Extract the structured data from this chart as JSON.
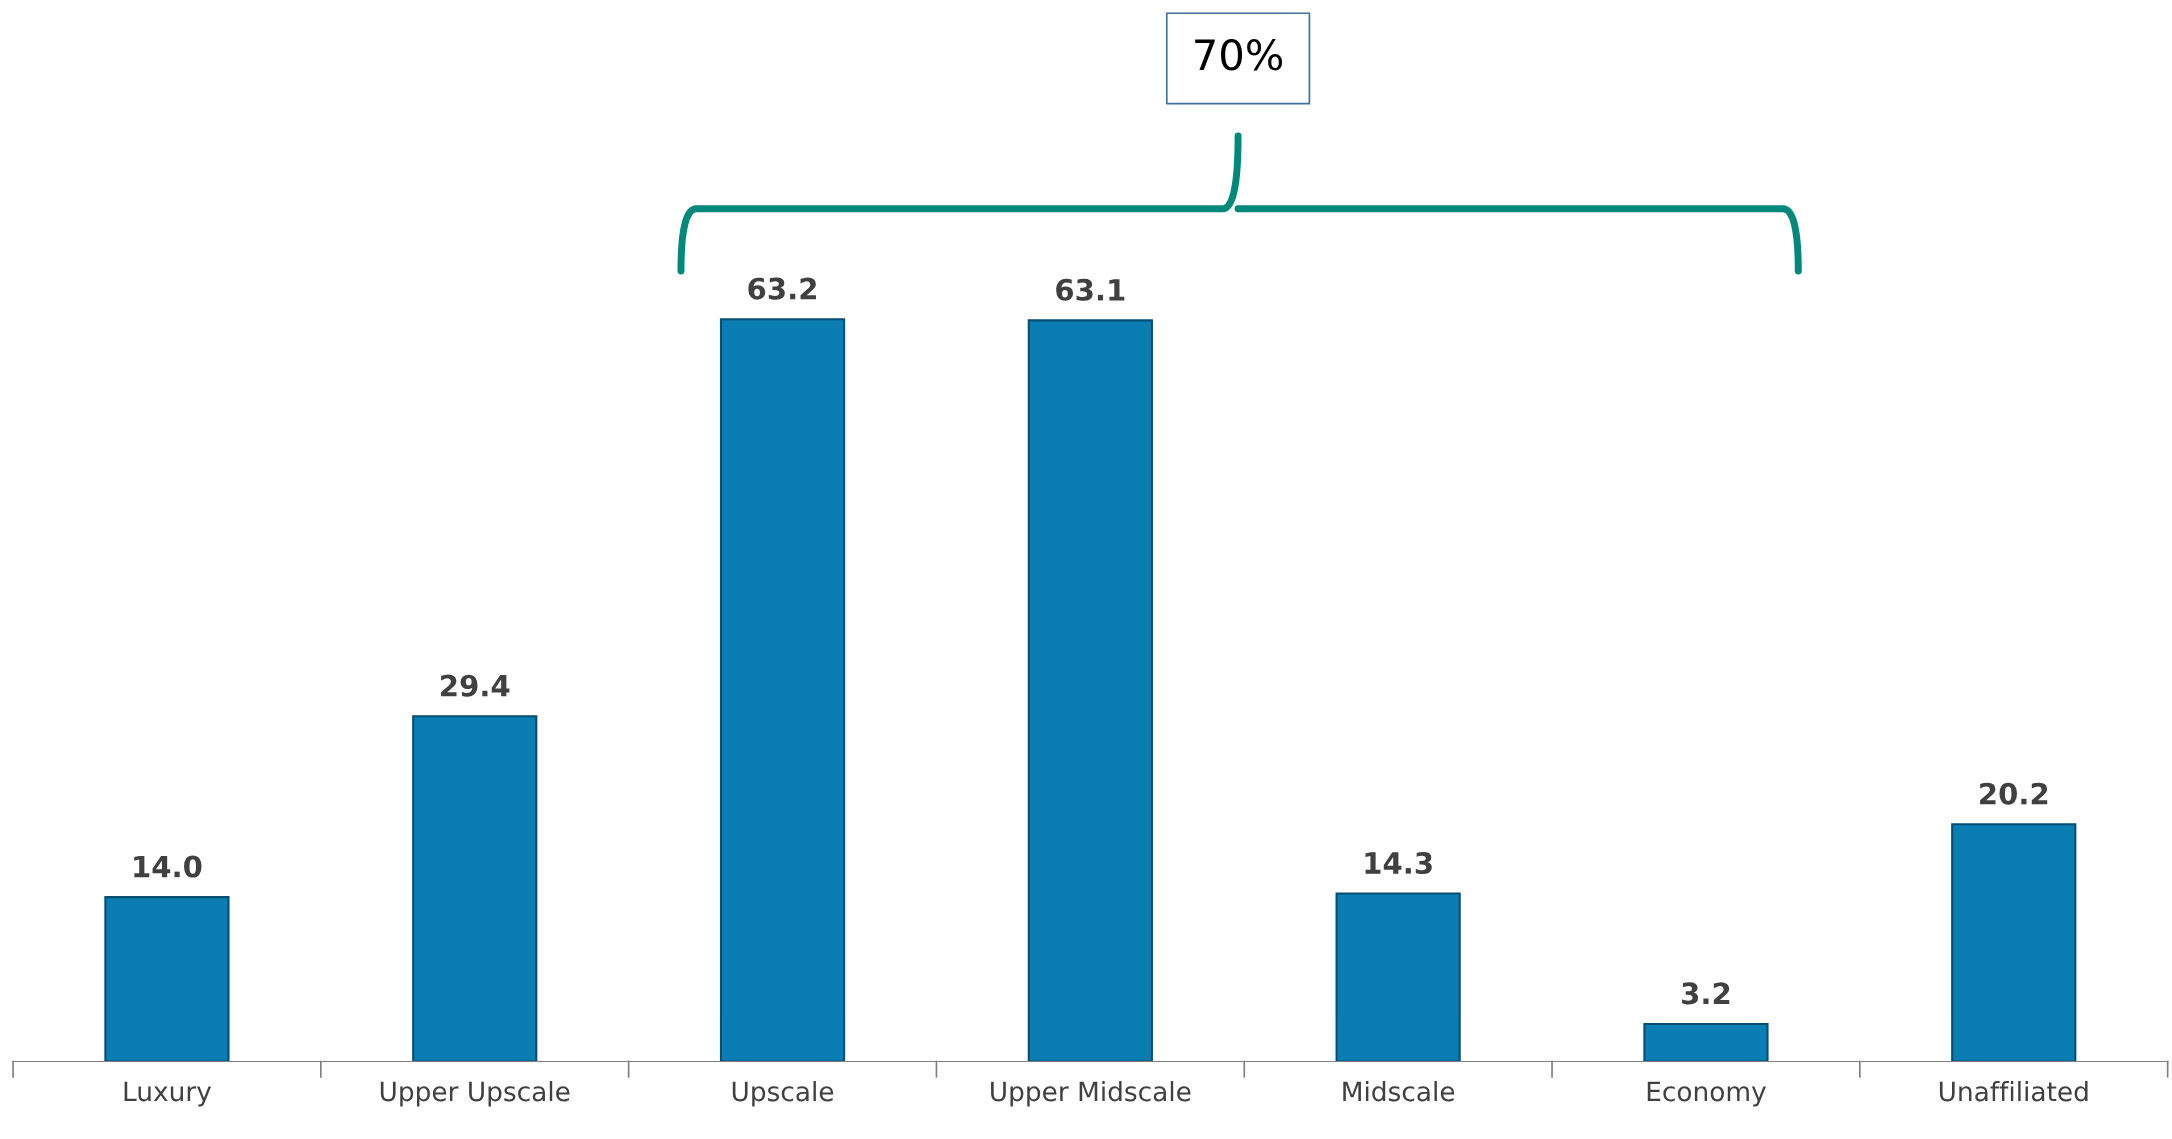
{
  "chart_data": {
    "type": "bar",
    "categories": [
      "Luxury",
      "Upper Upscale",
      "Upscale",
      "Upper Midscale",
      "Midscale",
      "Economy",
      "Unaffiliated"
    ],
    "values": [
      14.0,
      29.4,
      63.2,
      63.1,
      14.3,
      3.2,
      20.2
    ],
    "value_labels": [
      "14.0",
      "29.4",
      "63.2",
      "63.1",
      "14.3",
      "3.2",
      "20.2"
    ],
    "color": "#0a7db2",
    "grid": false,
    "annotations": [
      "70%"
    ]
  }
}
